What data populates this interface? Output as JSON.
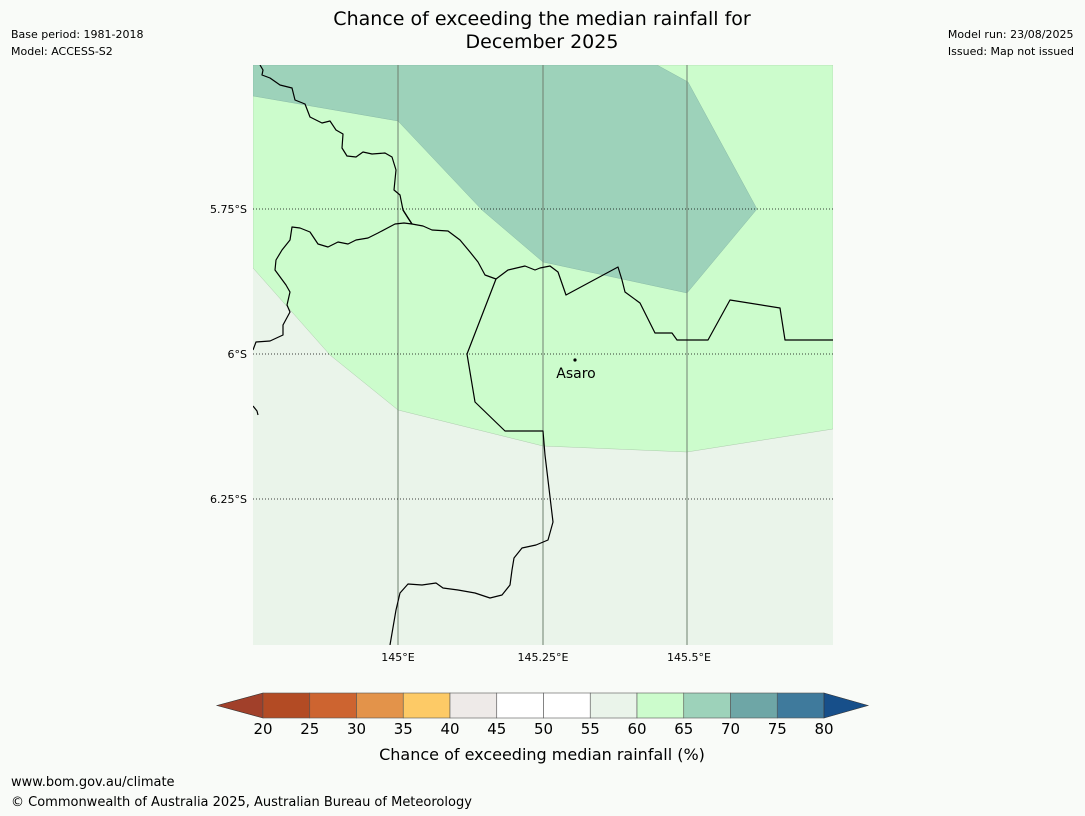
{
  "header": {
    "title_line1": "Chance of exceeding the median rainfall for",
    "title_line2": "December 2025",
    "base_period": "Base period: 1981-2018",
    "model": "Model: ACCESS-S2",
    "model_run": "Model run: 23/08/2025",
    "issued": "Issued: Map not issued"
  },
  "map": {
    "lat_labels": [
      "5.75°S",
      "6°S",
      "6.25°S"
    ],
    "lon_labels": [
      "145°E",
      "145.25°E",
      "145.5°E"
    ],
    "place_label": "Asaro",
    "region_colors": {
      "band_65_70": "#9dd2ba",
      "band_60_65": "#ccfccc",
      "band_55_60": "#eaf4ea"
    }
  },
  "colorbar": {
    "title": "Chance of exceeding median rainfall (%)",
    "tick_labels": [
      "20",
      "25",
      "30",
      "35",
      "40",
      "45",
      "50",
      "55",
      "60",
      "65",
      "70",
      "75",
      "80"
    ],
    "colors": [
      "#a1402a",
      "#b34b24",
      "#cd6430",
      "#e3934a",
      "#fdca66",
      "#eeeae8",
      "#ffffff",
      "#ffffff",
      "#eaf4ea",
      "#ccfccc",
      "#9dd2ba",
      "#6ea6a6",
      "#3f7a9c",
      "#174f8a"
    ]
  },
  "footer": {
    "url": "www.bom.gov.au/climate",
    "copyright": "© Commonwealth of Australia 2025, Australian Bureau of Meteorology"
  }
}
